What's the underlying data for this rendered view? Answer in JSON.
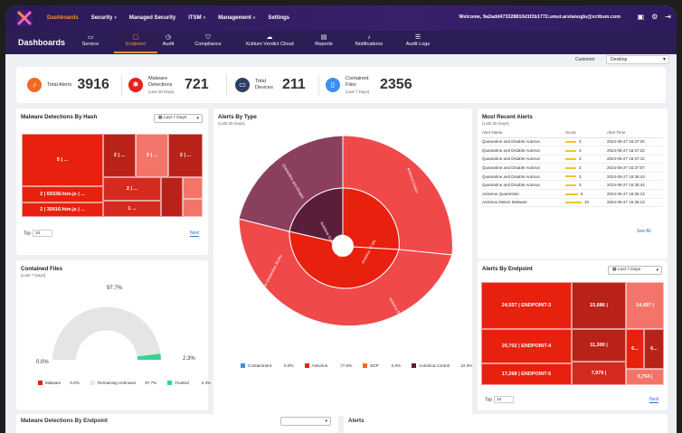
{
  "nav": {
    "items": [
      {
        "label": "Dashboards",
        "active": true,
        "caret": false
      },
      {
        "label": "Security",
        "caret": true
      },
      {
        "label": "Managed Security",
        "caret": false
      },
      {
        "label": "ITSM",
        "caret": true
      },
      {
        "label": "Management",
        "caret": true
      },
      {
        "label": "Settings",
        "caret": false
      }
    ],
    "welcome": "Welcome, 9a2add473328810d1f2b1772.umut.arslanoglu@xcitium.com",
    "icons": [
      "chat-icon",
      "gear-icon",
      "logout-icon"
    ]
  },
  "subnav": {
    "title": "Dashboards",
    "tabs": [
      {
        "label": "Service",
        "icon": "monitor-icon"
      },
      {
        "label": "Endpoint",
        "icon": "laptop-icon",
        "active": true
      },
      {
        "label": "Audit",
        "icon": "clock-icon"
      },
      {
        "label": "Compliance",
        "icon": "shield-icon"
      },
      {
        "label": "Xcitium Verdict Cloud",
        "icon": "cloud-icon"
      },
      {
        "label": "Reports",
        "icon": "report-icon"
      },
      {
        "label": "Notifications",
        "icon": "bell-icon"
      },
      {
        "label": "Audit Logs",
        "icon": "log-icon"
      }
    ]
  },
  "customer": {
    "label": "Customer",
    "value": "Desktop"
  },
  "kpis": [
    {
      "label": "Total Alerts",
      "sub": "",
      "value": "3916",
      "color": "#f26a21",
      "icon": "bell-icon"
    },
    {
      "label": "Malware Detections",
      "sub": "(Last 30 Days)",
      "value": "721",
      "color": "#e8201d",
      "icon": "bug-icon"
    },
    {
      "label": "Total Devices",
      "sub": "",
      "value": "211",
      "color": "#2d3e63",
      "icon": "monitor-icon"
    },
    {
      "label": "Contained Files",
      "sub": "(Last 7 Days)",
      "value": "2356",
      "color": "#3e8ef0",
      "icon": "file-icon"
    }
  ],
  "malware_hash": {
    "title": "Malware Detections By Hash",
    "range": "Last 7 Days",
    "top_label": "Top",
    "top_value": "10",
    "next": "Next",
    "tiles": [
      {
        "label": "5 | ...",
        "color": "#e8200e"
      },
      {
        "label": "2 | 69338.htm.js | ...",
        "color": "#e8200e"
      },
      {
        "label": "2 | 35916.htm.js | ...",
        "color": "#e8200e"
      },
      {
        "label": "2 | ...",
        "color": "#b82218"
      },
      {
        "label": "2 | ...",
        "color": "#f3756a"
      },
      {
        "label": "2 | ...",
        "color": "#b82218"
      },
      {
        "label": "2 | ...",
        "color": "#d52a1e"
      },
      {
        "label": "1 ...",
        "color": "#d52a1e"
      },
      {
        "label": "",
        "color": "#b82218"
      },
      {
        "label": "",
        "color": "#f3756a"
      },
      {
        "label": "",
        "color": "#f3756a"
      }
    ]
  },
  "alerts_by_type": {
    "title": "Alerts By Type",
    "sub": "(Last 30 Days)",
    "inner_labels": [
      "Autolona Control 22.0%",
      "Antivirus 77.9%"
    ],
    "outer_labels": [
      "Quarantine and Disable",
      "Antivirus Detect",
      "Antivirus Quarantine 36.8%",
      "Antivirus Detect Malware"
    ],
    "legend": [
      {
        "name": "Containment",
        "pct": "0.0%",
        "color": "#3e8ef0"
      },
      {
        "name": "Antivirus",
        "pct": "77.9%",
        "color": "#e8200e"
      },
      {
        "name": "EDP",
        "pct": "0.0%",
        "color": "#f26a21"
      },
      {
        "name": "Autolona Control",
        "pct": "22.0%",
        "color": "#5a1e3a"
      }
    ]
  },
  "recent_alerts": {
    "title": "Most Recent Alerts",
    "sub": "(Last 30 Days)",
    "headers": [
      "Alert Name",
      "Score",
      "Alert Time"
    ],
    "rows": [
      {
        "name": "Quarantine and Disable Autorun",
        "score": "3",
        "time": "2024-06-27 16:37:25"
      },
      {
        "name": "Quarantine and Disable Autorun",
        "score": "3",
        "time": "2024-06-27 16:37:22"
      },
      {
        "name": "Quarantine and Disable Autorun",
        "score": "3",
        "time": "2024-06-27 16:37:12"
      },
      {
        "name": "Quarantine and Disable Autorun",
        "score": "3",
        "time": "2024-06-27 16:37:07"
      },
      {
        "name": "Quarantine and Disable Autorun",
        "score": "3",
        "time": "2024-06-27 16:36:43"
      },
      {
        "name": "Quarantine and Disable Autorun",
        "score": "3",
        "time": "2024-06-27 16:35:42"
      },
      {
        "name": "Antivirus Quarantine",
        "score": "6",
        "time": "2024-06-27 16:35:13"
      },
      {
        "name": "Antivirus Detect Malware",
        "score": "10",
        "time": "2024-06-27 16:35:13"
      }
    ],
    "see_all": "See All"
  },
  "contained_files": {
    "title": "Contained Files",
    "sub": "(Last 7 Days)",
    "top_pct": "97.7%",
    "left_pct": "0.0%",
    "right_pct": "2.3%",
    "legend": [
      {
        "name": "Malware",
        "pct": "0.0%",
        "color": "#e8200e"
      },
      {
        "name": "Remaining Unknown",
        "pct": "97.7%",
        "color": "#e5e5e5"
      },
      {
        "name": "Trusted",
        "pct": "2.3%",
        "color": "#3ccf91"
      }
    ]
  },
  "alerts_endpoint": {
    "title": "Alerts By Endpoint",
    "range": "Last 7 Days",
    "top_label": "Top",
    "top_value": "10",
    "next": "Next",
    "tiles": [
      {
        "count": "24,557 |",
        "name": "ENDPOINT-3",
        "color": "#e8200e"
      },
      {
        "count": "20,702 |",
        "name": "ENDPOINT-4",
        "color": "#e8200e"
      },
      {
        "count": "17,268 |",
        "name": "ENDPOINT-5",
        "color": "#e8200e"
      },
      {
        "count": "15,686 |",
        "name": "",
        "color": "#b82218"
      },
      {
        "count": "11,300 |",
        "name": "",
        "color": "#b82218"
      },
      {
        "count": "7,979 |",
        "name": "",
        "color": "#d52a1e"
      },
      {
        "count": "14,497 |",
        "name": "",
        "color": "#f3756a"
      },
      {
        "count": "6...",
        "name": "",
        "color": "#e8200e"
      },
      {
        "count": "6...",
        "name": "",
        "color": "#b82218"
      },
      {
        "count": "3,754 |",
        "name": "",
        "color": "#f3756a"
      }
    ]
  },
  "bottom": {
    "left_title": "Malware Detections By Endpoint",
    "right_title": "Alerts"
  }
}
